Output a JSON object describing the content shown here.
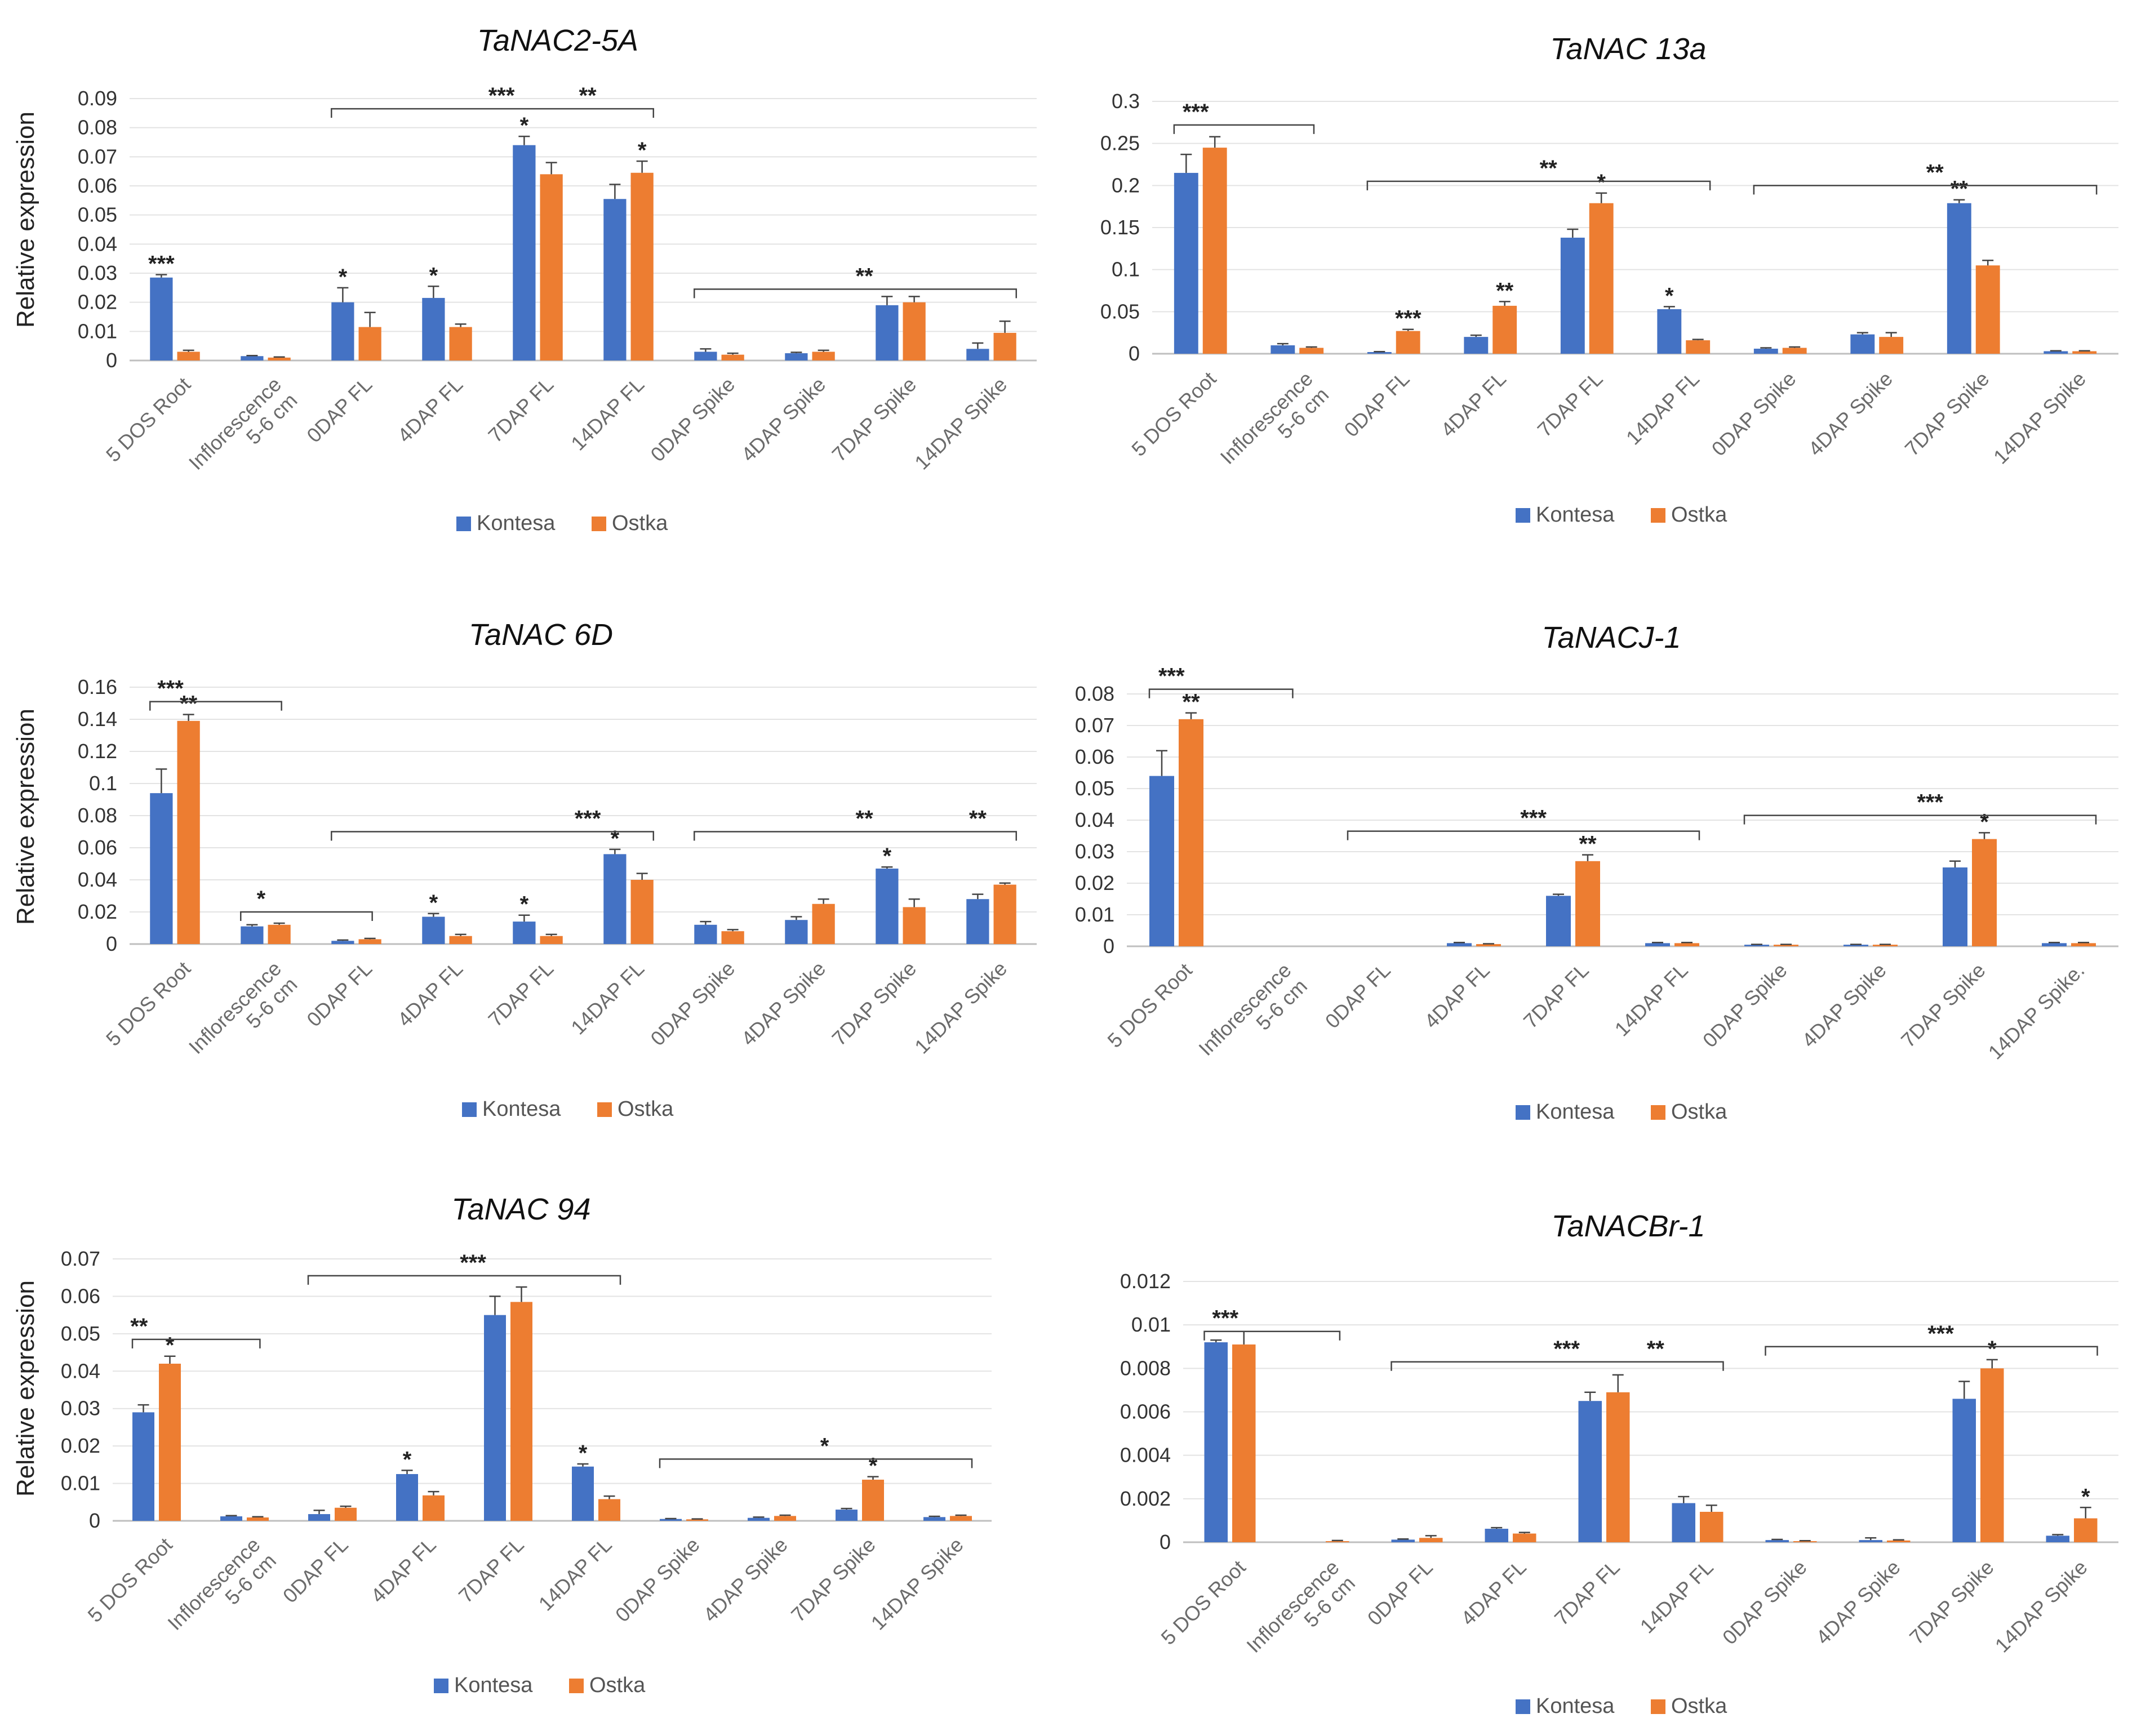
{
  "legend": [
    "Kontesa",
    "Ostka"
  ],
  "colors": {
    "Kontesa": "#4472C4",
    "Ostka": "#ED7D31"
  },
  "chart_data": [
    {
      "type": "bar",
      "title": "TaNAC2-5A",
      "ylabel": "Relative expression",
      "ylim": [
        0,
        0.09
      ],
      "yticks": [
        "0",
        "0.01",
        "0.02",
        "0.03",
        "0.04",
        "0.05",
        "0.06",
        "0.07",
        "0.08",
        "0.09"
      ],
      "categories": [
        "5 DOS Root",
        "Inflorescence\n5-6 cm",
        "0DAP FL",
        "4DAP FL",
        "7DAP FL",
        "14DAP FL",
        "0DAP Spike",
        "4DAP Spike",
        "7DAP Spike",
        "14DAP Spike"
      ],
      "series": [
        {
          "name": "Kontesa",
          "values": [
            0.0285,
            0.0015,
            0.02,
            0.0215,
            0.074,
            0.0555,
            0.003,
            0.0025,
            0.019,
            0.004
          ],
          "errors": [
            0.001,
            0.0002,
            0.005,
            0.004,
            0.003,
            0.005,
            0.001,
            0.0003,
            0.003,
            0.002
          ]
        },
        {
          "name": "Ostka",
          "values": [
            0.003,
            0.001,
            0.0115,
            0.0115,
            0.064,
            0.0645,
            0.002,
            0.003,
            0.02,
            0.0095
          ],
          "errors": [
            0.0005,
            0.0002,
            0.005,
            0.001,
            0.004,
            0.004,
            0.0005,
            0.0005,
            0.002,
            0.004
          ]
        }
      ],
      "bar_marks": [
        {
          "i": 0,
          "s": 0,
          "text": "***"
        },
        {
          "i": 2,
          "s": 0,
          "text": "*"
        },
        {
          "i": 3,
          "s": 0,
          "text": "*"
        },
        {
          "i": 4,
          "s": 0,
          "text": "*"
        },
        {
          "i": 5,
          "s": 1,
          "text": "*"
        }
      ],
      "brackets": [
        {
          "from": 2,
          "to": 5,
          "y": 0.0865,
          "down": true,
          "labels": [
            {
              "at": 4.1,
              "text": "***"
            },
            {
              "at": 5.05,
              "text": "**"
            }
          ]
        },
        {
          "from": 6,
          "to": 9,
          "y": 0.0245,
          "down": true,
          "labels": [
            {
              "at": 8.1,
              "text": "**"
            }
          ]
        }
      ]
    },
    {
      "type": "bar",
      "title": "TaNAC 13a",
      "ylabel": "",
      "ylim": [
        0,
        0.3
      ],
      "yticks": [
        "0",
        "0.05",
        "0.1",
        "0.15",
        "0.2",
        "0.25",
        "0.3"
      ],
      "categories": [
        "5 DOS Root",
        "Inflorescence\n5-6 cm",
        "0DAP FL",
        "4DAP FL",
        "7DAP FL",
        "14DAP FL",
        "0DAP Spike",
        "4DAP Spike",
        "7DAP Spike",
        "14DAP Spike"
      ],
      "series": [
        {
          "name": "Kontesa",
          "values": [
            0.215,
            0.01,
            0.002,
            0.02,
            0.138,
            0.053,
            0.006,
            0.023,
            0.179,
            0.003
          ],
          "errors": [
            0.022,
            0.002,
            0.0005,
            0.002,
            0.01,
            0.003,
            0.001,
            0.002,
            0.004,
            0.0005
          ]
        },
        {
          "name": "Ostka",
          "values": [
            0.245,
            0.007,
            0.027,
            0.057,
            0.179,
            0.016,
            0.007,
            0.02,
            0.105,
            0.003
          ],
          "errors": [
            0.013,
            0.001,
            0.002,
            0.005,
            0.012,
            0.001,
            0.001,
            0.005,
            0.006,
            0.0005
          ]
        }
      ],
      "bar_marks": [
        {
          "i": 2,
          "s": 1,
          "text": "***"
        },
        {
          "i": 3,
          "s": 1,
          "text": "**"
        },
        {
          "i": 4,
          "s": 1,
          "text": "*"
        },
        {
          "i": 5,
          "s": 0,
          "text": "*"
        },
        {
          "i": 8,
          "s": 0,
          "text": "**"
        }
      ],
      "brackets": [
        {
          "from": 0,
          "to": 0.9,
          "y": 0.272,
          "down": false,
          "labels": [
            {
              "at": 0.45,
              "text": "***"
            }
          ]
        },
        {
          "from": 2,
          "to": 5,
          "y": 0.205,
          "down": true,
          "labels": [
            {
              "at": 4.1,
              "text": "**"
            }
          ]
        },
        {
          "from": 6,
          "to": 9,
          "y": 0.2,
          "down": true,
          "labels": [
            {
              "at": 8.1,
              "text": "**"
            }
          ]
        }
      ]
    },
    {
      "type": "bar",
      "title": "TaNAC 6D",
      "ylabel": "Relative expression",
      "ylim": [
        0,
        0.16
      ],
      "yticks": [
        "0",
        "0.02",
        "0.04",
        "0.06",
        "0.08",
        "0.1",
        "0.12",
        "0.14",
        "0.16"
      ],
      "categories": [
        "5 DOS Root",
        "Inflorescence\n5-6 cm",
        "0DAP FL",
        "4DAP FL",
        "7DAP FL",
        "14DAP FL",
        "0DAP Spike",
        "4DAP Spike",
        "7DAP Spike",
        "14DAP Spike"
      ],
      "series": [
        {
          "name": "Kontesa",
          "values": [
            0.094,
            0.011,
            0.002,
            0.017,
            0.014,
            0.056,
            0.012,
            0.015,
            0.047,
            0.028
          ],
          "errors": [
            0.015,
            0.001,
            0.0005,
            0.002,
            0.004,
            0.003,
            0.002,
            0.002,
            0.001,
            0.003
          ]
        },
        {
          "name": "Ostka",
          "values": [
            0.139,
            0.012,
            0.003,
            0.005,
            0.005,
            0.04,
            0.008,
            0.025,
            0.023,
            0.037
          ],
          "errors": [
            0.004,
            0.001,
            0.0005,
            0.001,
            0.001,
            0.004,
            0.001,
            0.003,
            0.005,
            0.001
          ]
        }
      ],
      "bar_marks": [
        {
          "i": 0,
          "s": 1,
          "text": "**"
        },
        {
          "i": 3,
          "s": 0,
          "text": "*"
        },
        {
          "i": 4,
          "s": 0,
          "text": "*"
        },
        {
          "i": 5,
          "s": 0,
          "text": "*"
        },
        {
          "i": 8,
          "s": 0,
          "text": "*"
        }
      ],
      "brackets": [
        {
          "from": 0,
          "to": 0.9,
          "y": 0.151,
          "down": false,
          "labels": [
            {
              "at": 0.45,
              "text": "***"
            }
          ]
        },
        {
          "from": 1,
          "to": 1.9,
          "y": 0.02,
          "down": false,
          "labels": [
            {
              "at": 1.45,
              "text": "*"
            }
          ]
        },
        {
          "from": 2,
          "to": 5,
          "y": 0.07,
          "down": true,
          "labels": [
            {
              "at": 5.05,
              "text": "***"
            }
          ]
        },
        {
          "from": 6,
          "to": 9,
          "y": 0.07,
          "down": true,
          "labels": [
            {
              "at": 8.1,
              "text": "**"
            },
            {
              "at": 9.35,
              "text": "**"
            }
          ]
        }
      ]
    },
    {
      "type": "bar",
      "title": "TaNACJ-1",
      "ylabel": "",
      "ylim": [
        0,
        0.08
      ],
      "yticks": [
        "0",
        "0.01",
        "0.02",
        "0.03",
        "0.04",
        "0.05",
        "0.06",
        "0.07",
        "0.08"
      ],
      "categories": [
        "5 DOS Root",
        "Inflorescence\n5-6 cm",
        "0DAP FL",
        "4DAP FL",
        "7DAP FL",
        "14DAP FL",
        "0DAP Spike",
        "4DAP Spike",
        "7DAP Spike",
        "14DAP Spike."
      ],
      "series": [
        {
          "name": "Kontesa",
          "values": [
            0.054,
            0,
            0,
            0.001,
            0.016,
            0.001,
            0.0005,
            0.0005,
            0.025,
            0.001
          ],
          "errors": [
            0.008,
            0,
            0,
            0.0002,
            0.0005,
            0.0002,
            0.0001,
            0.0001,
            0.002,
            0.0002
          ]
        },
        {
          "name": "Ostka",
          "values": [
            0.072,
            0,
            0,
            0.0007,
            0.027,
            0.001,
            0.0005,
            0.0005,
            0.034,
            0.001
          ],
          "errors": [
            0.002,
            0,
            0,
            0.0001,
            0.002,
            0.0002,
            0.0001,
            0.0001,
            0.002,
            0.0002
          ]
        }
      ],
      "bar_marks": [
        {
          "i": 0,
          "s": 1,
          "text": "**"
        },
        {
          "i": 4,
          "s": 1,
          "text": "**"
        },
        {
          "i": 8,
          "s": 1,
          "text": "*"
        }
      ],
      "brackets": [
        {
          "from": 0,
          "to": 0.9,
          "y": 0.0815,
          "down": false,
          "labels": [
            {
              "at": 0.45,
              "text": "***"
            }
          ]
        },
        {
          "from": 2,
          "to": 5,
          "y": 0.0365,
          "down": true,
          "labels": [
            {
              "at": 4.1,
              "text": "***"
            }
          ]
        },
        {
          "from": 6,
          "to": 9,
          "y": 0.0415,
          "down": true,
          "labels": [
            {
              "at": 8.1,
              "text": "***"
            }
          ]
        }
      ]
    },
    {
      "type": "bar",
      "title": "TaNAC 94",
      "ylabel": "Relative expression",
      "ylim": [
        0,
        0.07
      ],
      "yticks": [
        "0",
        "0.01",
        "0.02",
        "0.03",
        "0.04",
        "0.05",
        "0.06",
        "0.07"
      ],
      "categories": [
        "5 DOS Root",
        "Inflorescence\n5-6 cm",
        "0DAP FL",
        "4DAP FL",
        "7DAP FL",
        "14DAP FL",
        "0DAP Spike",
        "4DAP Spike",
        "7DAP Spike",
        "14DAP Spike"
      ],
      "series": [
        {
          "name": "Kontesa",
          "values": [
            0.029,
            0.0012,
            0.0018,
            0.0125,
            0.055,
            0.0145,
            0.0005,
            0.0008,
            0.003,
            0.001
          ],
          "errors": [
            0.002,
            0.0002,
            0.001,
            0.001,
            0.005,
            0.0007,
            0.0001,
            0.0002,
            0.0003,
            0.0002
          ]
        },
        {
          "name": "Ostka",
          "values": [
            0.042,
            0.0009,
            0.0035,
            0.0068,
            0.0585,
            0.0058,
            0.0004,
            0.0013,
            0.011,
            0.0013
          ],
          "errors": [
            0.002,
            0.0002,
            0.0004,
            0.001,
            0.004,
            0.0008,
            0.0001,
            0.0002,
            0.0008,
            0.0002
          ]
        }
      ],
      "bar_marks": [
        {
          "i": 0,
          "s": 1,
          "text": "*"
        },
        {
          "i": 3,
          "s": 0,
          "text": "*"
        },
        {
          "i": 5,
          "s": 0,
          "text": "*"
        },
        {
          "i": 8,
          "s": 1,
          "text": "*"
        }
      ],
      "brackets": [
        {
          "from": 0,
          "to": 0.9,
          "y": 0.0485,
          "down": false,
          "labels": [
            {
              "at": 0.3,
              "text": "**"
            }
          ]
        },
        {
          "from": 2,
          "to": 5,
          "y": 0.0655,
          "down": true,
          "labels": [
            {
              "at": 4.1,
              "text": "***"
            }
          ]
        },
        {
          "from": 6,
          "to": 9,
          "y": 0.0165,
          "down": true,
          "labels": [
            {
              "at": 8.1,
              "text": "*"
            }
          ]
        }
      ]
    },
    {
      "type": "bar",
      "title": "TaNACBr-1",
      "ylabel": "",
      "ylim": [
        0,
        0.012
      ],
      "yticks": [
        "0",
        "0.002",
        "0.004",
        "0.006",
        "0.008",
        "0.01",
        "0.012"
      ],
      "categories": [
        "5 DOS Root",
        "Inflorescence\n5-6 cm",
        "0DAP FL",
        "4DAP FL",
        "7DAP FL",
        "14DAP FL",
        "0DAP Spike",
        "4DAP Spike",
        "7DAP Spike",
        "14DAP Spike"
      ],
      "series": [
        {
          "name": "Kontesa",
          "values": [
            0.0092,
            0,
            0.00012,
            0.00062,
            0.0065,
            0.0018,
            0.0001,
            0.0001,
            0.0066,
            0.0003
          ],
          "errors": [
            0.0001,
            0,
            3e-05,
            5e-05,
            0.0004,
            0.0003,
            3e-05,
            0.0001,
            0.0008,
            5e-05
          ]
        },
        {
          "name": "Ostka",
          "values": [
            0.0091,
            5e-05,
            0.0002,
            0.0004,
            0.0069,
            0.0014,
            5e-05,
            8e-05,
            0.008,
            0.0011
          ],
          "errors": [
            0.0006,
            3e-05,
            0.0001,
            5e-05,
            0.0008,
            0.0003,
            2e-05,
            3e-05,
            0.0004,
            0.0005
          ]
        }
      ],
      "bar_marks": [
        {
          "i": 8,
          "s": 1,
          "text": "*"
        },
        {
          "i": 9,
          "s": 1,
          "text": "*"
        }
      ],
      "brackets": [
        {
          "from": 0,
          "to": 0.9,
          "y": 0.0097,
          "down": false,
          "labels": [
            {
              "at": 0.45,
              "text": "***"
            }
          ]
        },
        {
          "from": 2,
          "to": 5,
          "y": 0.0083,
          "down": true,
          "labels": [
            {
              "at": 4.1,
              "text": "***"
            },
            {
              "at": 5.05,
              "text": "**"
            }
          ]
        },
        {
          "from": 6,
          "to": 9,
          "y": 0.009,
          "down": true,
          "labels": [
            {
              "at": 8.1,
              "text": "***"
            }
          ]
        }
      ]
    }
  ]
}
